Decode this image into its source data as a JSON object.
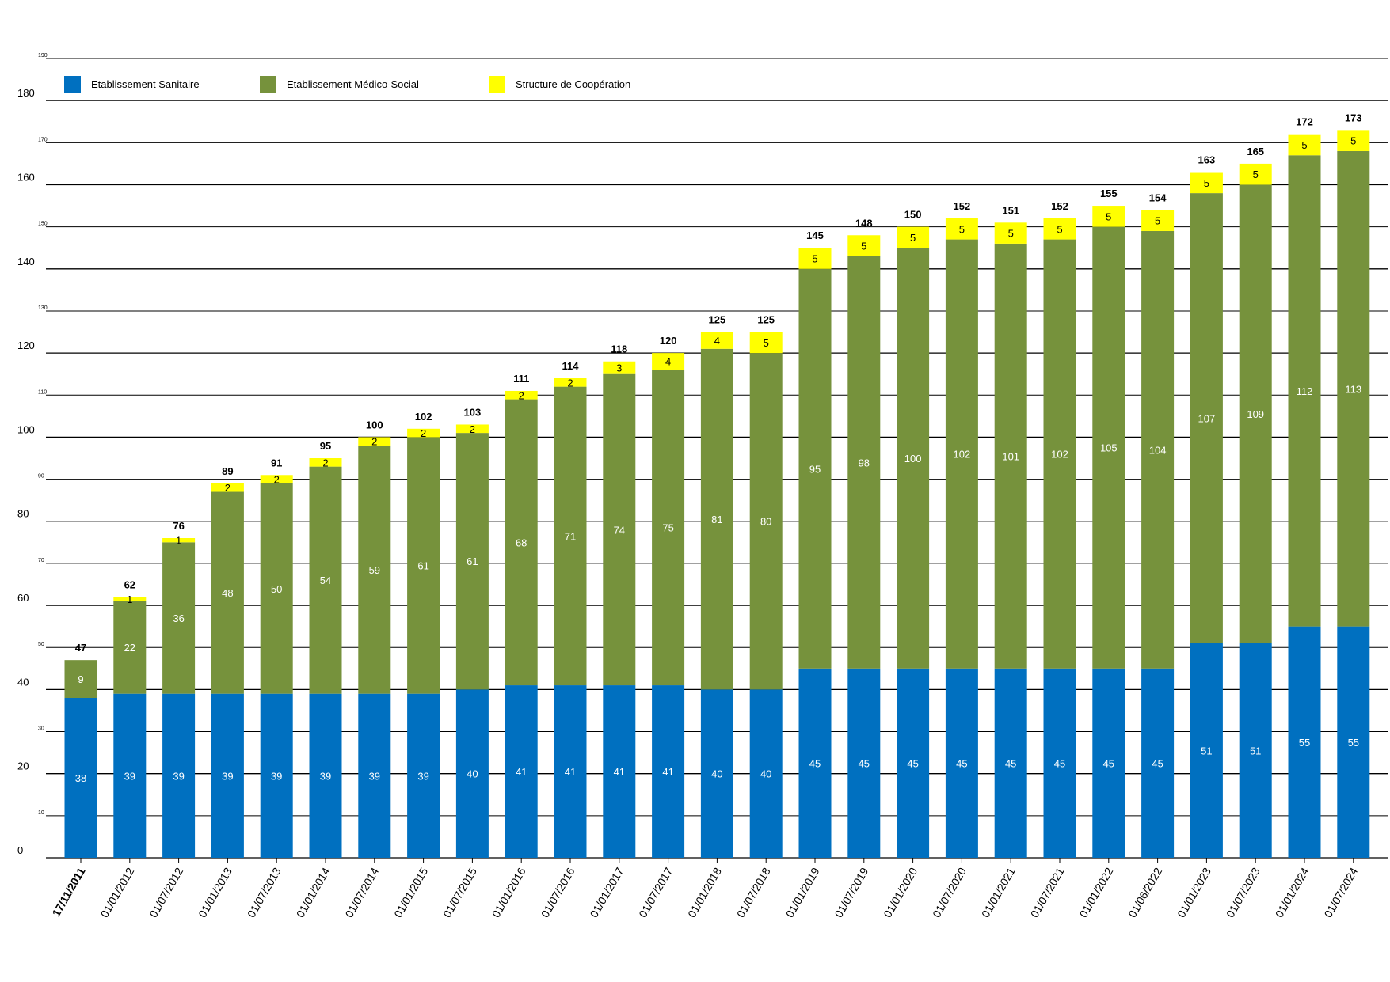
{
  "chart_data": {
    "type": "bar",
    "stacked": true,
    "categories": [
      "17/11/2011",
      "01/01/2012",
      "01/07/2012",
      "01/01/2013",
      "01/07/2013",
      "01/01/2014",
      "01/07/2014",
      "01/01/2015",
      "01/07/2015",
      "01/01/2016",
      "01/07/2016",
      "01/01/2017",
      "01/07/2017",
      "01/01/2018",
      "01/07/2018",
      "01/01/2019",
      "01/07/2019",
      "01/01/2020",
      "01/07/2020",
      "01/01/2021",
      "01/07/2021",
      "01/01/2022",
      "01/06/2022",
      "01/01/2023",
      "01/07/2023",
      "01/01/2024",
      "01/07/2024"
    ],
    "series": [
      {
        "name": "Etablissement Sanitaire",
        "color": "#0070C0",
        "values": [
          38,
          39,
          39,
          39,
          39,
          39,
          39,
          39,
          40,
          41,
          41,
          41,
          41,
          40,
          40,
          45,
          45,
          45,
          45,
          45,
          45,
          45,
          45,
          51,
          51,
          55,
          55
        ]
      },
      {
        "name": "Etablissement Médico-Social",
        "color": "#76923C",
        "values": [
          9,
          22,
          36,
          48,
          50,
          54,
          59,
          61,
          61,
          68,
          71,
          74,
          75,
          81,
          80,
          95,
          98,
          100,
          102,
          101,
          102,
          105,
          104,
          107,
          109,
          112,
          113
        ]
      },
      {
        "name": "Structure de Coopération",
        "color": "#FFFF00",
        "values": [
          null,
          1,
          1,
          2,
          2,
          2,
          2,
          2,
          2,
          2,
          2,
          3,
          4,
          4,
          5,
          5,
          5,
          5,
          5,
          5,
          5,
          5,
          5,
          5,
          5,
          5,
          5
        ]
      }
    ],
    "totals": [
      47,
      62,
      76,
      89,
      91,
      95,
      100,
      102,
      103,
      111,
      114,
      118,
      120,
      125,
      125,
      145,
      148,
      150,
      152,
      151,
      152,
      155,
      154,
      163,
      165,
      172,
      173
    ],
    "y_major_ticks": [
      "0",
      "20",
      "40",
      "60",
      "80",
      "100",
      "120",
      "140",
      "160",
      "180"
    ],
    "y_minor_ticks": [
      "10",
      "30",
      "50",
      "70",
      "90",
      "110",
      "130",
      "150",
      "170",
      "190"
    ],
    "ylim": [
      0,
      190
    ],
    "legend_position": "top-left",
    "grid": true
  }
}
